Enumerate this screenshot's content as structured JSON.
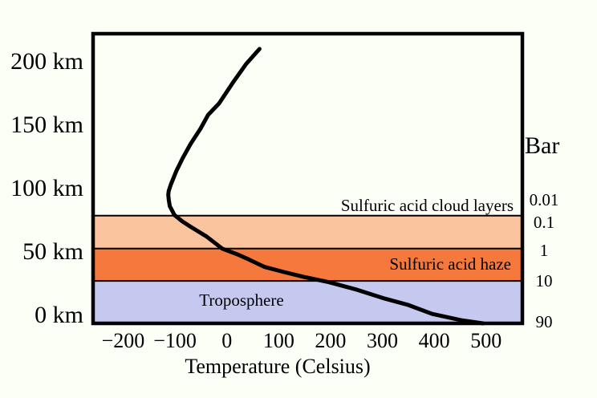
{
  "page": {
    "background_color": "#FBFFF5",
    "axis_color": "#000000"
  },
  "chart_data": {
    "type": "line",
    "title": "",
    "xlabel": "Temperature (Celsius)",
    "ylabel": "km",
    "right_axis_title": "Bar",
    "grid": false,
    "legend": false,
    "xlim": [
      -258,
      570
    ],
    "ylim_km": [
      -6.5,
      222
    ],
    "x_ticks": [
      {
        "value": -200,
        "label": "−200"
      },
      {
        "value": -100,
        "label": "−100"
      },
      {
        "value": 0,
        "label": "0"
      },
      {
        "value": 100,
        "label": "100"
      },
      {
        "value": 200,
        "label": "200"
      },
      {
        "value": 300,
        "label": "300"
      },
      {
        "value": 400,
        "label": "400"
      },
      {
        "value": 500,
        "label": "500"
      }
    ],
    "y_ticks": [
      {
        "km": 200,
        "label": "200 km"
      },
      {
        "km": 150,
        "label": "150 km"
      },
      {
        "km": 100,
        "label": "100 km"
      },
      {
        "km": 50,
        "label": "50 km"
      },
      {
        "km": 0,
        "label": "0 km"
      }
    ],
    "pressure_ticks_bar": [
      {
        "label": "0.01",
        "km": 91
      },
      {
        "label": "0.1",
        "km": 73
      },
      {
        "label": "1",
        "km": 51
      },
      {
        "label": "10",
        "km": 27
      },
      {
        "label": "90",
        "km": -5
      }
    ],
    "bands": [
      {
        "label": "Sulfuric acid cloud layers",
        "top_km": 78.5,
        "bottom_km": 52.5,
        "color": "#F9C49E",
        "label_position": "above-band"
      },
      {
        "label": "Sulfuric acid haze",
        "top_km": 52.5,
        "bottom_km": 27,
        "color": "#F5793C",
        "label_position": "inside-right"
      },
      {
        "label": "Troposphere",
        "top_km": 27,
        "bottom_km": -6.5,
        "color": "#C5C9F0",
        "label_position": "inside-left"
      }
    ],
    "series": [
      {
        "name": "temperature-profile",
        "color": "#000000",
        "points_temp_c_alt_km": [
          [
            63,
            210
          ],
          [
            37,
            198
          ],
          [
            11,
            183
          ],
          [
            -15,
            167
          ],
          [
            -36,
            158
          ],
          [
            -51,
            147
          ],
          [
            -70,
            135
          ],
          [
            -85,
            124
          ],
          [
            -97,
            114
          ],
          [
            -108,
            103
          ],
          [
            -112,
            98
          ],
          [
            -113,
            95
          ],
          [
            -112,
            91
          ],
          [
            -110,
            86
          ],
          [
            -101,
            79
          ],
          [
            -86,
            74
          ],
          [
            -71,
            70
          ],
          [
            -55,
            66
          ],
          [
            -39,
            62
          ],
          [
            -9,
            52.5
          ],
          [
            20,
            48
          ],
          [
            42,
            44
          ],
          [
            73,
            38
          ],
          [
            110,
            34
          ],
          [
            150,
            30
          ],
          [
            197,
            26
          ],
          [
            251,
            20
          ],
          [
            305,
            13
          ],
          [
            350,
            8
          ],
          [
            396,
            1
          ],
          [
            452,
            -4
          ],
          [
            494,
            -6.5
          ]
        ]
      }
    ]
  }
}
